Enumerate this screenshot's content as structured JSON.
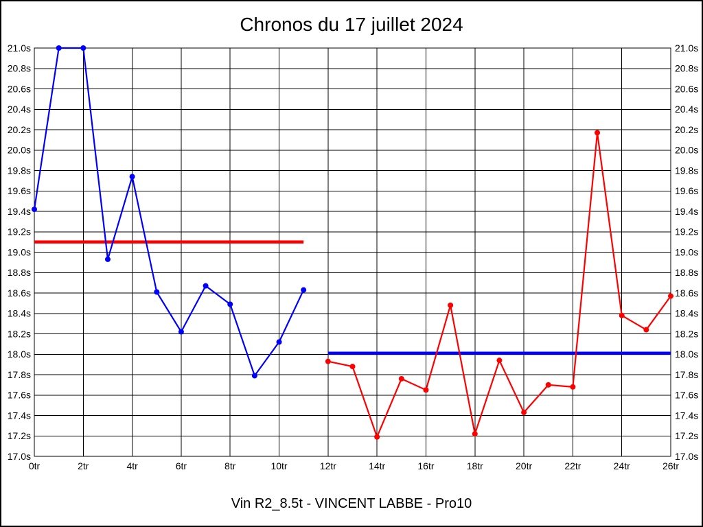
{
  "chart_data": {
    "type": "line",
    "title": "Chronos du 17 juillet 2024",
    "footer": "Vin R2_8.5t - VINCENT LABBE - Pro10",
    "x_axis": {
      "min": 0,
      "max": 26,
      "tick_step": 2,
      "unit_suffix": "tr"
    },
    "y_axis": {
      "min": 17.0,
      "max": 21.0,
      "tick_step": 0.2,
      "unit_suffix": "s",
      "decimals": 1,
      "labels_both_sides": true
    },
    "grid": true,
    "colors": {
      "blue": "#0000ff",
      "red": "#ff0000",
      "grid": "#000000"
    },
    "series": [
      {
        "name": "chronos-bleus",
        "color": "#0000ff",
        "x": [
          0,
          1,
          2,
          3,
          4,
          5,
          6,
          7,
          8,
          9,
          10,
          11
        ],
        "values": [
          19.42,
          21.0,
          21.0,
          18.93,
          19.74,
          18.61,
          18.22,
          18.67,
          18.49,
          17.79,
          18.12,
          18.63
        ]
      },
      {
        "name": "chronos-rouges",
        "color": "#ff0000",
        "x": [
          12,
          13,
          14,
          15,
          16,
          17,
          18,
          19,
          20,
          21,
          22,
          23,
          24,
          25,
          26
        ],
        "values": [
          17.93,
          17.88,
          17.19,
          17.76,
          17.65,
          18.48,
          17.22,
          17.94,
          17.43,
          17.7,
          17.68,
          20.17,
          18.38,
          18.24,
          18.57
        ]
      }
    ],
    "reference_lines": [
      {
        "name": "moyenne-serie-bleue",
        "color": "#ff0000",
        "y": 19.1,
        "x_start": 0,
        "x_end": 11
      },
      {
        "name": "moyenne-serie-rouge",
        "color": "#0000ff",
        "y": 18.01,
        "x_start": 12,
        "x_end": 26
      }
    ]
  }
}
